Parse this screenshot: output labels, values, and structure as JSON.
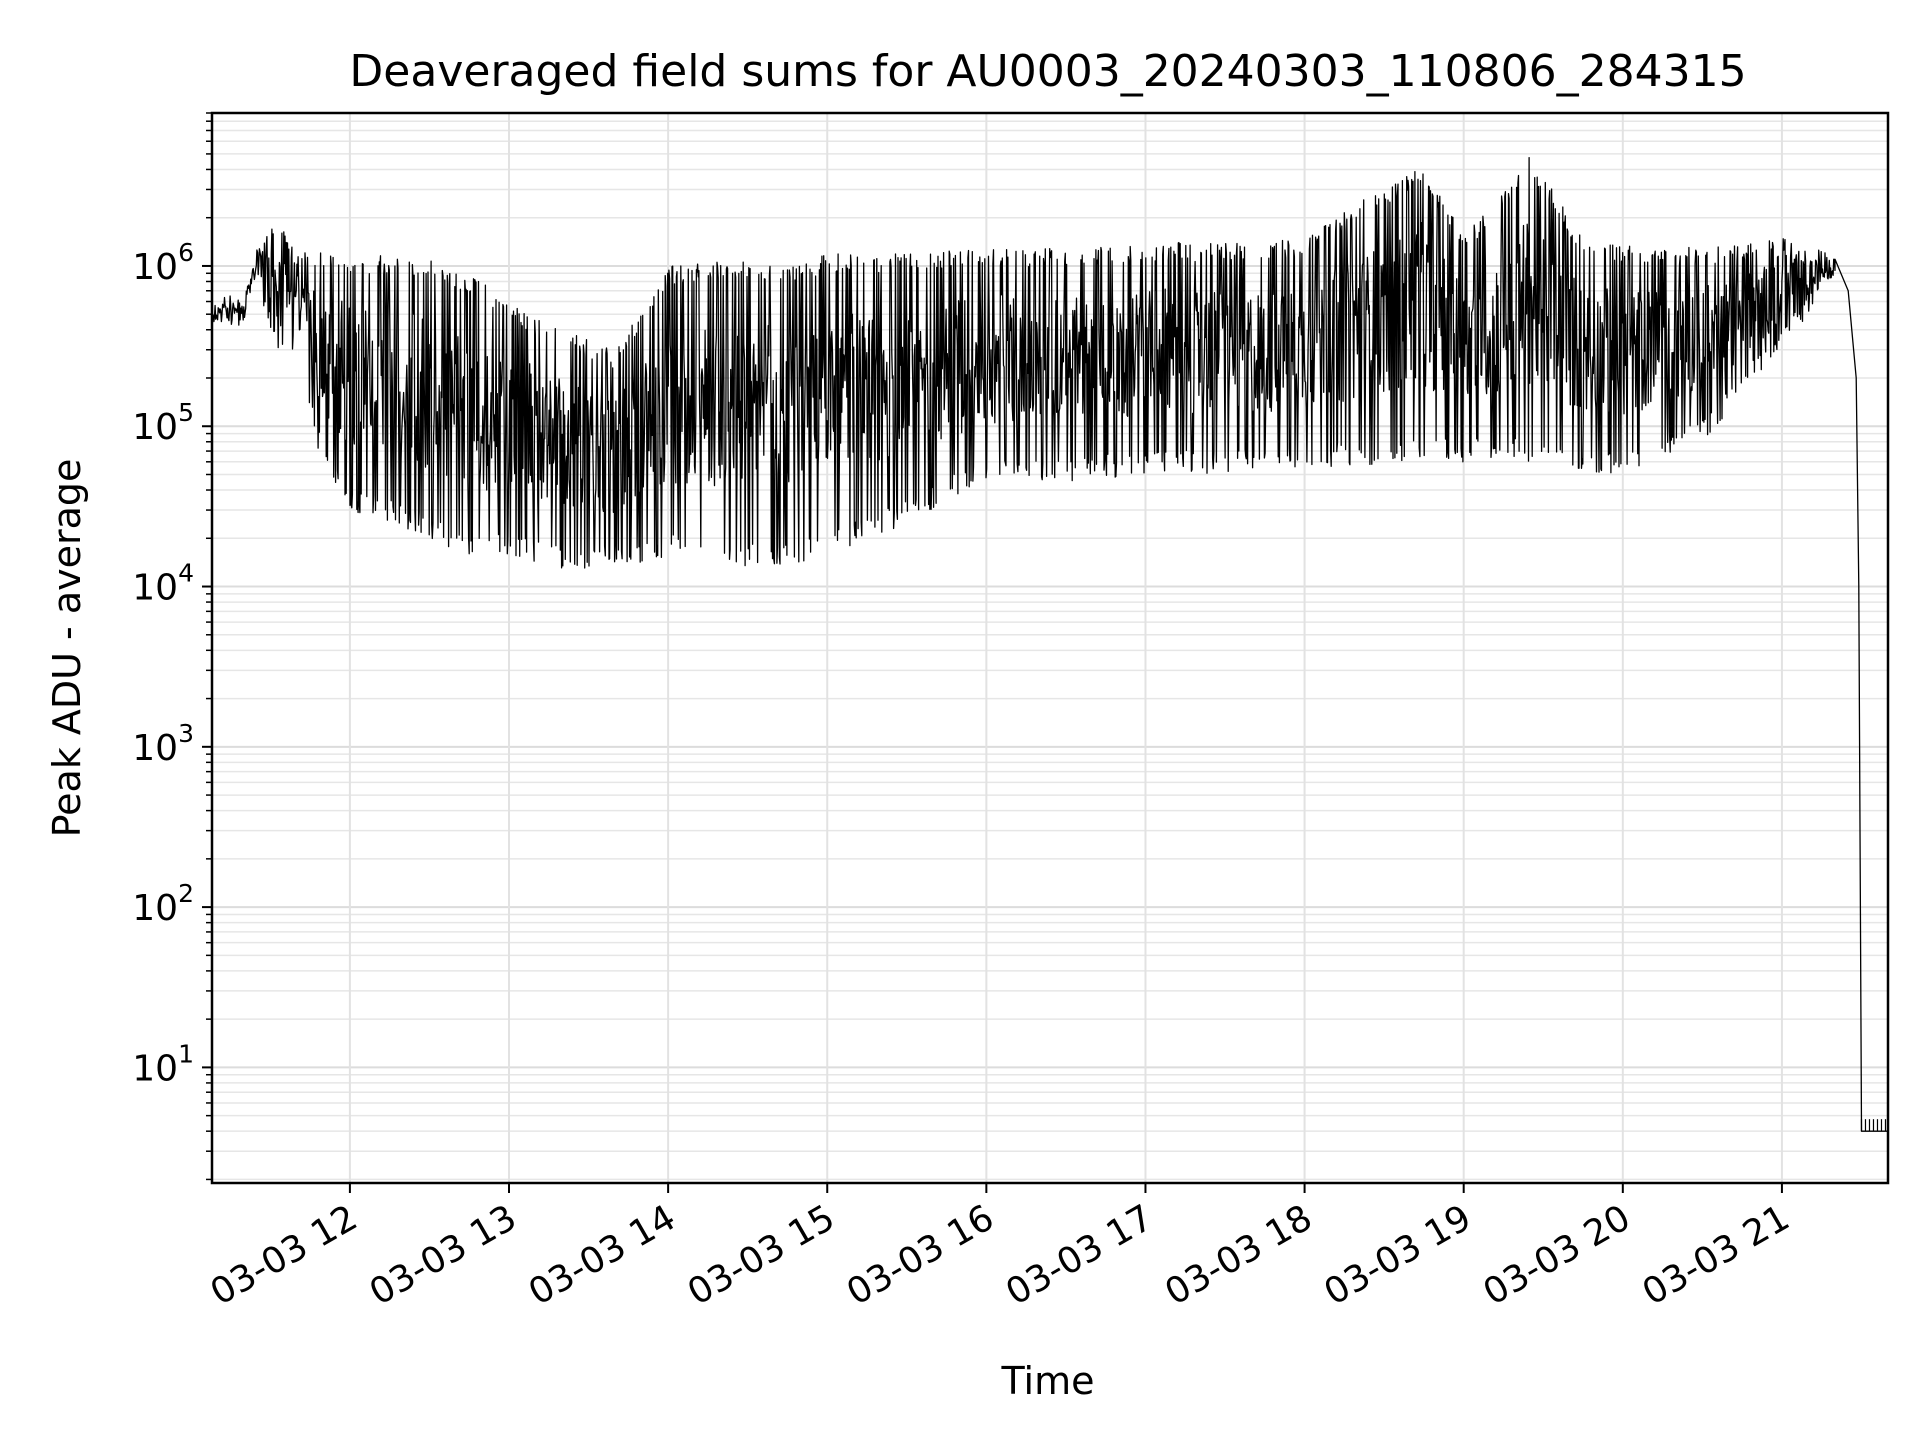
{
  "chart_data": {
    "type": "line",
    "title": "Deaveraged field sums for AU0003_20240303_110806_284315",
    "xlabel": "Time",
    "ylabel": "Peak ADU - average",
    "x_scale": "time",
    "y_scale": "log",
    "xlim": [
      "03-03 11:08",
      "03-03 21:40"
    ],
    "ylim": [
      1.9,
      9000000
    ],
    "grid": true,
    "legend": "none",
    "line_color": "#000000",
    "x_ticks": [
      {
        "value": "03-03 12:00",
        "label": "03-03 12"
      },
      {
        "value": "03-03 13:00",
        "label": "03-03 13"
      },
      {
        "value": "03-03 14:00",
        "label": "03-03 14"
      },
      {
        "value": "03-03 15:00",
        "label": "03-03 15"
      },
      {
        "value": "03-03 16:00",
        "label": "03-03 16"
      },
      {
        "value": "03-03 17:00",
        "label": "03-03 17"
      },
      {
        "value": "03-03 18:00",
        "label": "03-03 18"
      },
      {
        "value": "03-03 19:00",
        "label": "03-03 19"
      },
      {
        "value": "03-03 20:00",
        "label": "03-03 20"
      },
      {
        "value": "03-03 21:00",
        "label": "03-03 21"
      }
    ],
    "y_ticks": [
      {
        "value": 10,
        "base": "10",
        "exp": "1"
      },
      {
        "value": 100,
        "base": "10",
        "exp": "2"
      },
      {
        "value": 1000,
        "base": "10",
        "exp": "3"
      },
      {
        "value": 10000,
        "base": "10",
        "exp": "4"
      },
      {
        "value": 100000,
        "base": "10",
        "exp": "5"
      },
      {
        "value": 1000000,
        "base": "10",
        "exp": "6"
      }
    ],
    "series": [
      {
        "note_style": "upper and lower envelope of a dense signal",
        "envelope": [
          {
            "x": "03-03 11:08",
            "high": 600000,
            "low": 400000
          },
          {
            "x": "03-03 11:20",
            "high": 700000,
            "low": 400000
          },
          {
            "x": "03-03 11:25",
            "high": 1300000,
            "low": 800000
          },
          {
            "x": "03-03 11:32",
            "high": 2000000,
            "low": 300000
          },
          {
            "x": "03-03 11:40",
            "high": 1200000,
            "low": 300000
          },
          {
            "x": "03-03 11:50",
            "high": 1300000,
            "low": 50000
          },
          {
            "x": "03-03 12:00",
            "high": 1200000,
            "low": 30000
          },
          {
            "x": "03-03 12:30",
            "high": 1100000,
            "low": 20000
          },
          {
            "x": "03-03 12:45",
            "high": 900000,
            "low": 15000
          },
          {
            "x": "03-03 13:00",
            "high": 600000,
            "low": 15000
          },
          {
            "x": "03-03 13:20",
            "high": 400000,
            "low": 13000
          },
          {
            "x": "03-03 13:40",
            "high": 300000,
            "low": 13000
          },
          {
            "x": "03-03 14:00",
            "high": 1000000,
            "low": 15000
          },
          {
            "x": "03-03 14:30",
            "high": 1100000,
            "low": 13000
          },
          {
            "x": "03-03 14:45",
            "high": 1000000,
            "low": 13000
          },
          {
            "x": "03-03 15:00",
            "high": 1200000,
            "low": 15000
          },
          {
            "x": "03-03 15:30",
            "high": 1200000,
            "low": 25000
          },
          {
            "x": "03-03 16:00",
            "high": 1300000,
            "low": 45000
          },
          {
            "x": "03-03 16:30",
            "high": 1300000,
            "low": 45000
          },
          {
            "x": "03-03 17:00",
            "high": 1400000,
            "low": 50000
          },
          {
            "x": "03-03 17:30",
            "high": 1400000,
            "low": 50000
          },
          {
            "x": "03-03 18:00",
            "high": 1500000,
            "low": 55000
          },
          {
            "x": "03-03 18:45",
            "high": 4500000,
            "low": 60000
          },
          {
            "x": "03-03 19:00",
            "high": 1500000,
            "low": 60000
          },
          {
            "x": "03-03 19:25",
            "high": 5000000,
            "low": 60000
          },
          {
            "x": "03-03 19:45",
            "high": 1500000,
            "low": 50000
          },
          {
            "x": "03-03 20:00",
            "high": 1400000,
            "low": 50000
          },
          {
            "x": "03-03 20:30",
            "high": 1300000,
            "low": 80000
          },
          {
            "x": "03-03 21:00",
            "high": 1500000,
            "low": 300000
          },
          {
            "x": "03-03 21:20",
            "high": 1200000,
            "low": 800000
          }
        ],
        "tail": [
          {
            "x": "03-03 21:20",
            "y": 1100000
          },
          {
            "x": "03-03 21:25",
            "y": 700000
          },
          {
            "x": "03-03 21:28",
            "y": 200000
          },
          {
            "x": "03-03 21:29",
            "y": 10000
          },
          {
            "x": "03-03 21:30",
            "y": 4
          },
          {
            "x": "03-03 21:40",
            "y": 4
          }
        ]
      }
    ]
  }
}
